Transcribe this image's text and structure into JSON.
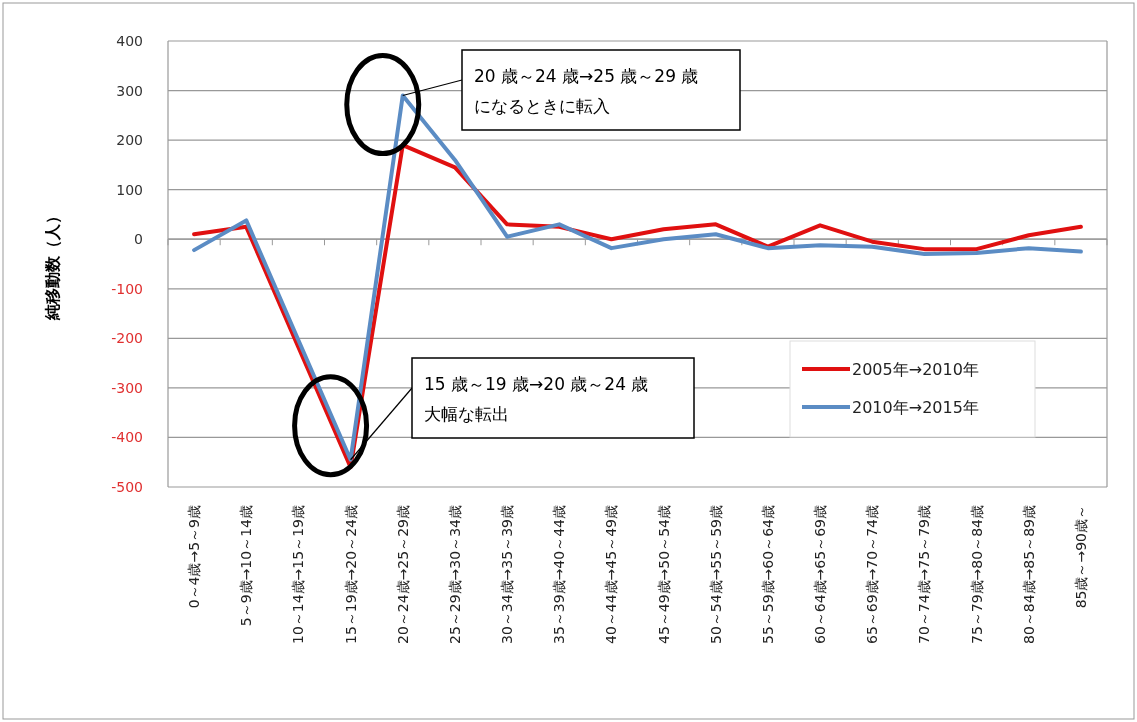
{
  "chart_data": {
    "type": "line",
    "ylabel": "純移動数（人）",
    "categories": [
      "0～4歳→5～9歳",
      "5～9歳→10～14歳",
      "10～14歳→15～19歳",
      "15～19歳→20～24歳",
      "20～24歳→25～29歳",
      "25～29歳→30～34歳",
      "30～34歳→35～39歳",
      "35～39歳→40～44歳",
      "40～44歳→45～49歳",
      "45～49歳→50～54歳",
      "50～54歳→55～59歳",
      "55～59歳→60～64歳",
      "60～64歳→65～69歳",
      "65～69歳→70～74歳",
      "70～74歳→75～79歳",
      "75～79歳→80～84歳",
      "80～84歳→85～89歳",
      "85歳～→90歳～"
    ],
    "series": [
      {
        "name": "2005年→2010年",
        "color": "#e01010",
        "values": [
          10,
          25,
          -218,
          -460,
          190,
          145,
          30,
          25,
          0,
          20,
          30,
          -15,
          28,
          -5,
          -20,
          -20,
          8,
          25
        ]
      },
      {
        "name": "2010年→2015年",
        "color": "#5b8cc4",
        "values": [
          -22,
          38,
          -204,
          -445,
          290,
          160,
          5,
          30,
          -18,
          0,
          10,
          -18,
          -12,
          -15,
          -30,
          -28,
          -18,
          -25
        ]
      }
    ],
    "ylim": [
      -500,
      400
    ],
    "yticks": [
      -500,
      -400,
      -300,
      -200,
      -100,
      0,
      100,
      200,
      300,
      400
    ],
    "grid": "y",
    "legend": "bottom right",
    "marker": "none",
    "line_style": "solid",
    "annotations": [
      {
        "text": "20 歳～24 歳→25 歳～29 歳になるときに転入",
        "x": "20～24歳→25～29歳",
        "y": 290
      },
      {
        "text": "15 歳～19 歳→20 歳～24 歳大幅な転出",
        "x": "15～19歳→20～24歳",
        "y": -445
      }
    ]
  }
}
